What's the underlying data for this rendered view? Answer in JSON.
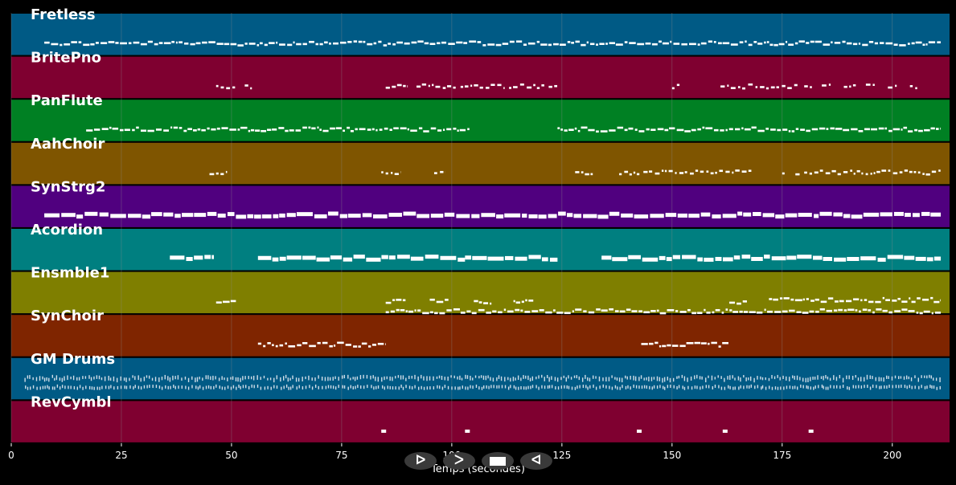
{
  "colors": {
    "background": "#000000",
    "note": "#ffffff",
    "drum_note": "#d0dde8",
    "grid": "#8a8a8a"
  },
  "chart_data": {
    "type": "piano-roll",
    "title": "",
    "xlabel": "Temps (secondes)",
    "ylabel": "",
    "xlim": [
      0,
      213
    ],
    "xticks": [
      0,
      25,
      50,
      75,
      100,
      125,
      150,
      175,
      200
    ],
    "xtick_labels": [
      "0",
      "25",
      "50",
      "75",
      "100",
      "125",
      "150",
      "175",
      "200"
    ],
    "grid": true,
    "tracks": [
      {
        "name": "Fretless",
        "color": "#005a85",
        "segments": [
          [
            7.5,
            211
          ]
        ],
        "style": "dense-small"
      },
      {
        "name": "BritePno",
        "color": "#7f0030",
        "segments": [
          [
            46.5,
            51
          ],
          [
            53,
            55
          ],
          [
            85,
            90
          ],
          [
            92,
            101
          ],
          [
            102,
            112
          ],
          [
            113,
            121
          ],
          [
            122,
            124
          ],
          [
            150,
            152
          ],
          [
            161,
            179
          ],
          [
            180,
            182
          ],
          [
            184,
            186
          ],
          [
            189,
            192
          ],
          [
            194,
            196
          ],
          [
            199,
            201
          ],
          [
            204,
            206
          ]
        ],
        "style": "sparse-small"
      },
      {
        "name": "PanFlute",
        "color": "#008023",
        "segments": [
          [
            17,
            104
          ],
          [
            124,
            211
          ]
        ],
        "style": "dense-small"
      },
      {
        "name": "AahChoir",
        "color": "#7f5500",
        "segments": [
          [
            45,
            49
          ],
          [
            84,
            88.5
          ],
          [
            96,
            98.5
          ],
          [
            128,
            132
          ],
          [
            138,
            143
          ],
          [
            143.5,
            168
          ],
          [
            175,
            176
          ],
          [
            178,
            179
          ],
          [
            180,
            211
          ]
        ],
        "style": "sparse-small"
      },
      {
        "name": "SynStrg2",
        "color": "#50007f",
        "segments": [
          [
            7.5,
            211
          ]
        ],
        "style": "dense-thick"
      },
      {
        "name": "Acordion",
        "color": "#007f80",
        "segments": [
          [
            36,
            46
          ],
          [
            56,
            103
          ],
          [
            103,
            124
          ],
          [
            134,
            211
          ]
        ],
        "style": "dense-thick"
      },
      {
        "name": "Ensmble1",
        "color": "#7f7f00",
        "segments": [
          [
            46.5,
            51
          ],
          [
            85,
            89.5
          ],
          [
            95,
            99.5
          ],
          [
            105,
            109
          ],
          [
            114,
            118.5
          ],
          [
            85,
            211
          ],
          [
            163,
            167
          ],
          [
            172,
            211
          ]
        ],
        "style": "mixed"
      },
      {
        "name": "SynChoir",
        "color": "#7f2500",
        "segments": [
          [
            56,
            85
          ],
          [
            143,
            163
          ]
        ],
        "style": "dense-small"
      },
      {
        "name": "GM Drums",
        "color": "#005a85",
        "segments": [
          [
            3,
            211
          ]
        ],
        "style": "drums"
      },
      {
        "name": "RevCymbl",
        "color": "#7f0030",
        "segments": [
          [
            84,
            85
          ],
          [
            103,
            104
          ],
          [
            142,
            143
          ],
          [
            161.5,
            162.5
          ],
          [
            181,
            182
          ]
        ],
        "style": "single"
      }
    ]
  },
  "controls": {
    "play_label": "ᐅ",
    "fast_forward_label": "ᐳ",
    "rewind_label": "ᐊ"
  }
}
